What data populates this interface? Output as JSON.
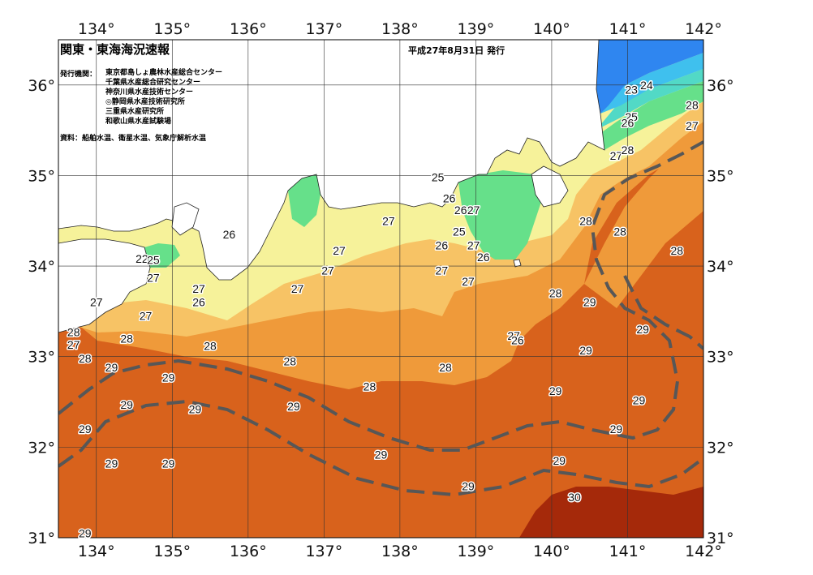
{
  "header": {
    "title": "関東・東海海況速報",
    "date": "平成27年8月31日 発行",
    "issuer_label": "発行機関：",
    "issuers": [
      "東京都島しょ農林水産総合センター",
      "千葉県水産総合研究センター",
      "神奈川県水産技術センター",
      "◎静岡県水産技術研究所",
      "三重県水産研究所",
      "和歌山県水産試験場"
    ],
    "source": "資料：船舶水温、衛星水温、気象庁解析水温"
  },
  "axes": {
    "lon_ticks": [
      "134°",
      "135°",
      "136°",
      "137°",
      "138°",
      "139°",
      "140°",
      "141°",
      "142°"
    ],
    "lat_ticks": [
      "36°",
      "35°",
      "34°",
      "33°",
      "32°",
      "31°"
    ]
  },
  "map_extent": {
    "lon": [
      133.5,
      142
    ],
    "lat": [
      31,
      36.5
    ]
  },
  "color_scale": {
    "below_23": "#2f86f0",
    "23": "#3fc0ee",
    "24": "#52d9c6",
    "25": "#66e08a",
    "26": "#f6f29a",
    "27": "#f7c365",
    "28": "#ef9a3a",
    "29": "#d8621c",
    "30": "#a5290a",
    "land": "#ffffff",
    "kuroshio_axis": "#575757"
  },
  "isotherm_labels": [
    {
      "text": "23",
      "lon": 141.05,
      "lat": 35.95
    },
    {
      "text": "24",
      "lon": 141.25,
      "lat": 36.0
    },
    {
      "text": "25",
      "lon": 141.05,
      "lat": 35.65
    },
    {
      "text": "26",
      "lon": 141.0,
      "lat": 35.58
    },
    {
      "text": "28",
      "lon": 141.85,
      "lat": 35.78
    },
    {
      "text": "27",
      "lon": 141.85,
      "lat": 35.55
    },
    {
      "text": "27",
      "lon": 140.85,
      "lat": 35.22
    },
    {
      "text": "28",
      "lon": 141.0,
      "lat": 35.28
    },
    {
      "text": "25",
      "lon": 138.5,
      "lat": 34.98
    },
    {
      "text": "26",
      "lon": 138.65,
      "lat": 34.75
    },
    {
      "text": "26",
      "lon": 138.8,
      "lat": 34.62
    },
    {
      "text": "27",
      "lon": 138.97,
      "lat": 34.62
    },
    {
      "text": "25",
      "lon": 138.78,
      "lat": 34.38
    },
    {
      "text": "26",
      "lon": 138.55,
      "lat": 34.23
    },
    {
      "text": "27",
      "lon": 138.97,
      "lat": 34.23
    },
    {
      "text": "26",
      "lon": 139.1,
      "lat": 34.1
    },
    {
      "text": "27",
      "lon": 137.85,
      "lat": 34.5
    },
    {
      "text": "28",
      "lon": 140.45,
      "lat": 34.5
    },
    {
      "text": "28",
      "lon": 140.9,
      "lat": 34.38
    },
    {
      "text": "28",
      "lon": 141.65,
      "lat": 34.17
    },
    {
      "text": "27",
      "lon": 137.2,
      "lat": 34.17
    },
    {
      "text": "27",
      "lon": 137.05,
      "lat": 33.95
    },
    {
      "text": "27",
      "lon": 138.55,
      "lat": 33.95
    },
    {
      "text": "27",
      "lon": 138.9,
      "lat": 33.83
    },
    {
      "text": "26",
      "lon": 135.75,
      "lat": 34.35
    },
    {
      "text": "27",
      "lon": 135.35,
      "lat": 33.75
    },
    {
      "text": "27",
      "lon": 136.65,
      "lat": 33.75
    },
    {
      "text": "28",
      "lon": 140.05,
      "lat": 33.7
    },
    {
      "text": "29",
      "lon": 140.5,
      "lat": 33.6
    },
    {
      "text": "22",
      "lon": 134.6,
      "lat": 34.08
    },
    {
      "text": "25",
      "lon": 134.75,
      "lat": 34.07
    },
    {
      "text": "27",
      "lon": 134.75,
      "lat": 33.87
    },
    {
      "text": "27",
      "lon": 134.0,
      "lat": 33.6
    },
    {
      "text": "26",
      "lon": 135.35,
      "lat": 33.6
    },
    {
      "text": "27",
      "lon": 134.65,
      "lat": 33.45
    },
    {
      "text": "29",
      "lon": 141.2,
      "lat": 33.3
    },
    {
      "text": "28",
      "lon": 133.7,
      "lat": 33.27
    },
    {
      "text": "27",
      "lon": 133.7,
      "lat": 33.13
    },
    {
      "text": "28",
      "lon": 134.4,
      "lat": 33.2
    },
    {
      "text": "28",
      "lon": 135.5,
      "lat": 33.12
    },
    {
      "text": "27",
      "lon": 139.5,
      "lat": 33.23
    },
    {
      "text": "26",
      "lon": 139.55,
      "lat": 33.18
    },
    {
      "text": "29",
      "lon": 140.45,
      "lat": 33.07
    },
    {
      "text": "28",
      "lon": 133.85,
      "lat": 32.98
    },
    {
      "text": "29",
      "lon": 134.2,
      "lat": 32.88
    },
    {
      "text": "28",
      "lon": 136.55,
      "lat": 32.95
    },
    {
      "text": "28",
      "lon": 138.6,
      "lat": 32.88
    },
    {
      "text": "29",
      "lon": 134.95,
      "lat": 32.77
    },
    {
      "text": "28",
      "lon": 137.6,
      "lat": 32.67
    },
    {
      "text": "29",
      "lon": 140.05,
      "lat": 32.62
    },
    {
      "text": "29",
      "lon": 141.15,
      "lat": 32.52
    },
    {
      "text": "29",
      "lon": 134.4,
      "lat": 32.47
    },
    {
      "text": "29",
      "lon": 135.3,
      "lat": 32.42
    },
    {
      "text": "29",
      "lon": 136.6,
      "lat": 32.45
    },
    {
      "text": "29",
      "lon": 140.85,
      "lat": 32.2
    },
    {
      "text": "29",
      "lon": 133.85,
      "lat": 32.2
    },
    {
      "text": "29",
      "lon": 137.75,
      "lat": 31.92
    },
    {
      "text": "29",
      "lon": 140.1,
      "lat": 31.85
    },
    {
      "text": "29",
      "lon": 134.2,
      "lat": 31.82
    },
    {
      "text": "29",
      "lon": 134.95,
      "lat": 31.82
    },
    {
      "text": "29",
      "lon": 138.9,
      "lat": 31.57
    },
    {
      "text": "30",
      "lon": 140.3,
      "lat": 31.45
    },
    {
      "text": "29",
      "lon": 133.85,
      "lat": 31.05
    }
  ]
}
